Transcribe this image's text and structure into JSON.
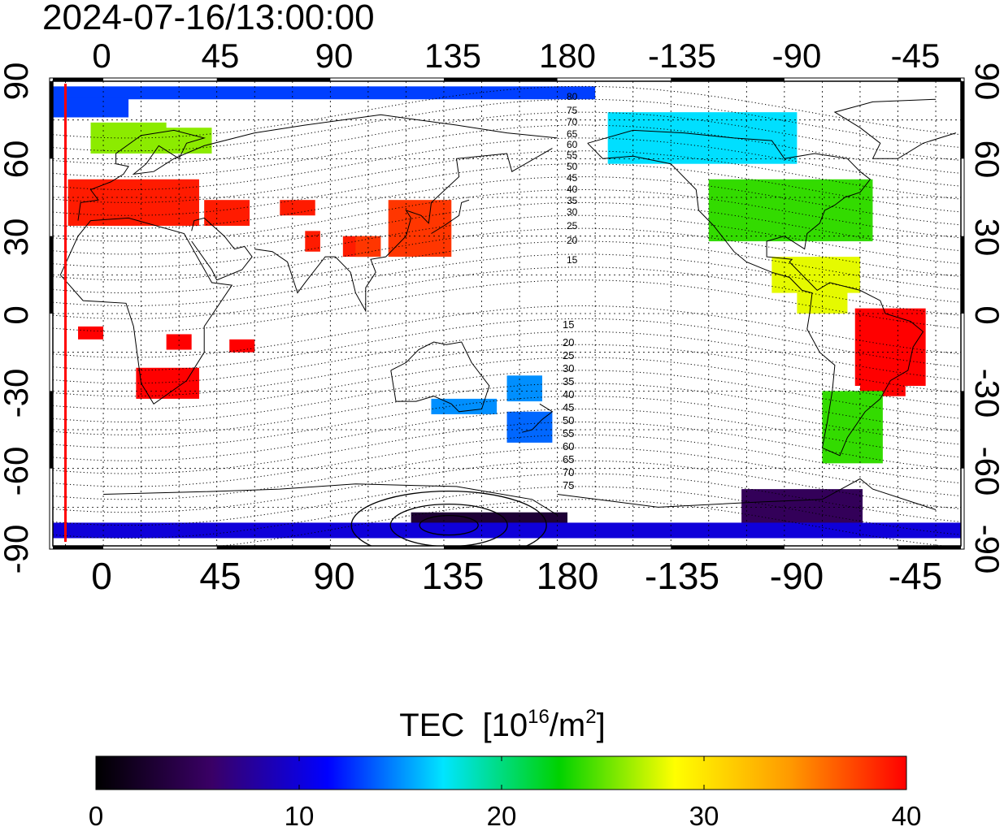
{
  "timestamp": "2024-07-16/13:00:00",
  "x_ticks_top": [
    "0",
    "45",
    "90",
    "135",
    "180",
    "-135",
    "-90",
    "-45"
  ],
  "x_ticks_bottom": [
    "0",
    "45",
    "90",
    "135",
    "180",
    "-135",
    "-90",
    "-45"
  ],
  "y_ticks_left": [
    "90",
    "60",
    "30",
    "0",
    "-30",
    "-60",
    "-90"
  ],
  "y_ticks_right": [
    "90",
    "60",
    "30",
    "0",
    "-30",
    "-60",
    "-90"
  ],
  "contour_labels_north": [
    "80",
    "75",
    "70",
    "65",
    "60",
    "55",
    "50",
    "45",
    "40",
    "35",
    "30",
    "25",
    "20",
    "15"
  ],
  "contour_labels_south": [
    "15",
    "20",
    "25",
    "30",
    "35",
    "40",
    "45",
    "50",
    "55",
    "60",
    "65",
    "70",
    "75"
  ],
  "colorbar": {
    "title_main": "TEC",
    "title_unit_base": "[10",
    "title_unit_exp": "16",
    "title_unit_mid": "/m",
    "title_unit_exp2": "2",
    "title_unit_end": "]",
    "min": 0,
    "max": 40,
    "tick_labels": [
      "0",
      "10",
      "20",
      "30",
      "40"
    ],
    "stops": [
      "#000000",
      "#3a0066",
      "#0000ff",
      "#00e5ff",
      "#00d200",
      "#ffff00",
      "#ff9900",
      "#ff0000"
    ]
  },
  "tec_regions": [
    {
      "name": "north-polar-cap",
      "value": 13
    },
    {
      "name": "europe-north",
      "value": 26
    },
    {
      "name": "europe-mediterranean",
      "value": 39
    },
    {
      "name": "north-africa",
      "value": 39
    },
    {
      "name": "south-africa",
      "value": 40
    },
    {
      "name": "east-asia",
      "value": 38
    },
    {
      "name": "north-america-north",
      "value": 17
    },
    {
      "name": "north-america-mid",
      "value": 24
    },
    {
      "name": "central-america",
      "value": 28
    },
    {
      "name": "brazil",
      "value": 40
    },
    {
      "name": "south-america-south",
      "value": 24
    },
    {
      "name": "australia-south",
      "value": 15
    },
    {
      "name": "new-zealand",
      "value": 14
    },
    {
      "name": "antarctica-pacific",
      "value": 3
    },
    {
      "name": "antarctica-atlantic",
      "value": 5
    },
    {
      "name": "south-polar-band",
      "value": 10
    }
  ],
  "terminator_longitude": -15
}
